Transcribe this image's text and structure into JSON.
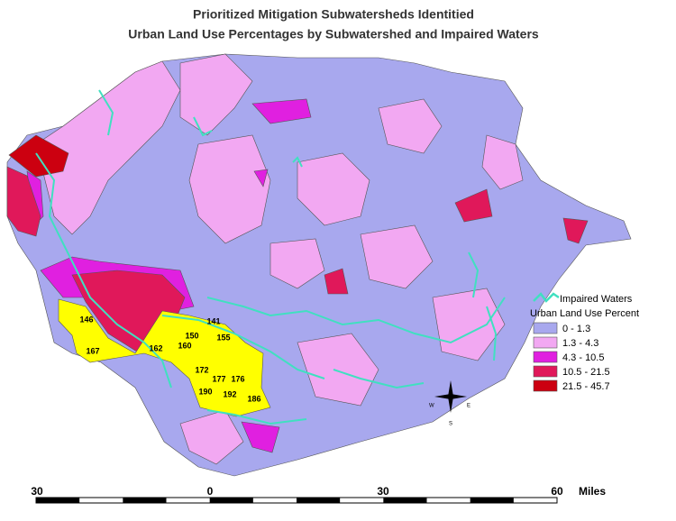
{
  "title": [
    "Prioritized Mitigation Subwatersheds Identitied",
    "Urban Land Use Percentages by Subwatershed and Impaired Waters"
  ],
  "legend": {
    "impaired_waters": "Impaired Waters",
    "river_color": "#40e0c0",
    "title": "Urban Land Use Percent",
    "classes": [
      {
        "label": "0 - 1.3",
        "color": "#a8a8ee"
      },
      {
        "label": "1.3 - 4.3",
        "color": "#f2a8f2"
      },
      {
        "label": "4.3 - 10.5",
        "color": "#e020e0"
      },
      {
        "label": "10.5 - 21.5",
        "color": "#e0185a"
      },
      {
        "label": "21.5 - 45.7",
        "color": "#cc0010"
      }
    ]
  },
  "priority_color": "#ffff00",
  "subwatershed_labels": [
    "146",
    "167",
    "150",
    "162",
    "160",
    "141",
    "155",
    "172",
    "177",
    "176",
    "190",
    "192",
    "186"
  ],
  "compass": [
    "W",
    "E",
    "S"
  ],
  "scale_bar": {
    "labels": [
      "30",
      "0",
      "30",
      "60"
    ],
    "unit": "Miles"
  }
}
